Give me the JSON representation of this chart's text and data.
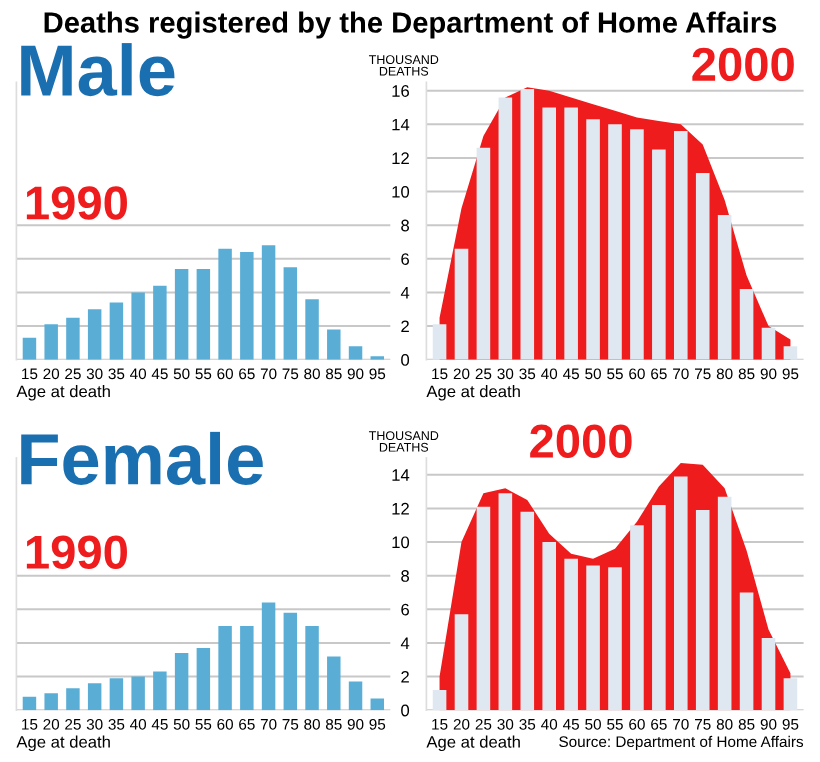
{
  "chart_data": [
    {
      "type": "bar",
      "title": "Deaths registered by the Department of Home Affairs",
      "subtitle": "1990",
      "annotations": [
        "Male"
      ],
      "xlabel": "Age at death",
      "categories": [
        "15",
        "20",
        "25",
        "30",
        "35",
        "40",
        "45",
        "50",
        "55",
        "60",
        "65",
        "70",
        "75",
        "80",
        "85",
        "90",
        "95"
      ],
      "series": [
        {
          "color": "#5aaed6",
          "values": [
            1.3,
            2.1,
            2.5,
            3.0,
            3.4,
            4.0,
            4.4,
            5.4,
            5.4,
            6.6,
            6.4,
            6.8,
            5.5,
            3.6,
            1.8,
            0.8,
            0.2
          ]
        }
      ],
      "ylim": [
        0,
        16.5
      ],
      "yticks": [
        0,
        2,
        4,
        6,
        8
      ],
      "grid": "y",
      "tick_labels": "x"
    },
    {
      "type": "bar",
      "subtitle": "2000",
      "ylabel": "THOUSAND\nDEATHS",
      "xlabel": "Age at death",
      "categories": [
        "15",
        "20",
        "25",
        "30",
        "35",
        "40",
        "45",
        "50",
        "55",
        "60",
        "65",
        "70",
        "75",
        "80",
        "85",
        "90",
        "95"
      ],
      "series": [
        {
          "type": "area",
          "color": "#ee1c1c",
          "values": [
            2.5,
            9.0,
            13.3,
            15.6,
            16.2,
            16.0,
            15.6,
            15.2,
            14.8,
            14.4,
            14.2,
            14.0,
            12.8,
            9.5,
            5.0,
            2.0,
            1.2
          ]
        },
        {
          "color": "#dfe8f0",
          "values": [
            2.1,
            6.6,
            12.6,
            15.6,
            16.1,
            15.0,
            15.0,
            14.3,
            14.0,
            13.7,
            12.5,
            13.6,
            11.1,
            8.6,
            4.2,
            1.9,
            0.8
          ]
        }
      ],
      "ylim": [
        0,
        16.5
      ],
      "yticks": [
        0,
        2,
        4,
        6,
        8,
        10,
        12,
        14,
        16
      ],
      "grid": "y"
    },
    {
      "type": "bar",
      "subtitle": "1990",
      "annotations": [
        "Female"
      ],
      "xlabel": "Age at death",
      "categories": [
        "15",
        "20",
        "25",
        "30",
        "35",
        "40",
        "45",
        "50",
        "55",
        "60",
        "65",
        "70",
        "75",
        "80",
        "85",
        "90",
        "95"
      ],
      "series": [
        {
          "color": "#5aaed6",
          "values": [
            0.8,
            1.0,
            1.3,
            1.6,
            1.9,
            2.0,
            2.3,
            3.4,
            3.7,
            5.0,
            5.0,
            6.4,
            5.8,
            5.0,
            3.2,
            1.7,
            0.7
          ]
        }
      ],
      "ylim": [
        0,
        15
      ],
      "yticks": [
        0,
        2,
        4,
        6,
        8
      ],
      "grid": "y",
      "tick_labels": "x"
    },
    {
      "type": "bar",
      "subtitle": "2000",
      "ylabel": "THOUSAND\nDEATHS",
      "xlabel": "Age at death",
      "annotations": [
        "Source: Department of Home Affairs"
      ],
      "categories": [
        "15",
        "20",
        "25",
        "30",
        "35",
        "40",
        "45",
        "50",
        "55",
        "60",
        "65",
        "70",
        "75",
        "80",
        "85",
        "90",
        "95"
      ],
      "series": [
        {
          "type": "area",
          "color": "#ee1c1c",
          "values": [
            2.0,
            10.0,
            12.9,
            13.2,
            12.5,
            10.5,
            9.3,
            9.0,
            9.6,
            11.2,
            13.3,
            14.7,
            14.6,
            13.2,
            9.5,
            4.8,
            2.2
          ]
        },
        {
          "color": "#dfe8f0",
          "values": [
            1.2,
            5.7,
            12.1,
            12.9,
            11.8,
            10.0,
            9.0,
            8.6,
            8.5,
            11.0,
            12.2,
            13.9,
            11.9,
            12.7,
            7.0,
            4.3,
            1.9
          ]
        }
      ],
      "ylim": [
        0,
        15
      ],
      "yticks": [
        0,
        2,
        4,
        6,
        8,
        10,
        12,
        14
      ],
      "grid": "y"
    }
  ]
}
